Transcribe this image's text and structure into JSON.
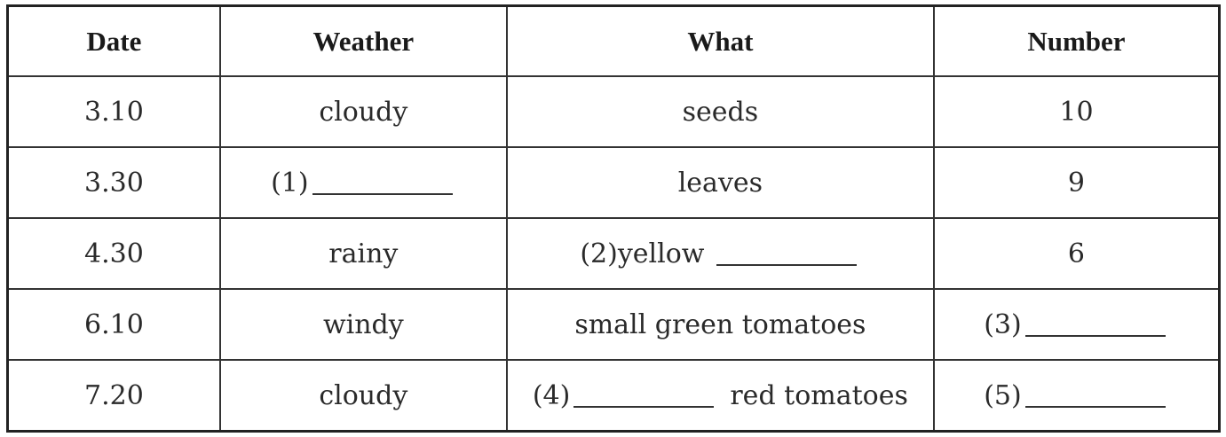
{
  "headers": [
    "Date",
    "Weather",
    "What",
    "Number"
  ],
  "rows": [
    {
      "date": "3.10",
      "weather": "cloudy",
      "what": "seeds",
      "number": "10"
    },
    {
      "date": "3.30",
      "weather_label": "(1)",
      "what": "leaves",
      "number": "9"
    },
    {
      "date": "4.30",
      "weather": "rainy",
      "what_label": "(2)",
      "what_pre": "yellow",
      "number": "6"
    },
    {
      "date": "6.10",
      "weather": "windy",
      "what": "small green tomatoes",
      "number_label": "(3)"
    },
    {
      "date": "7.20",
      "weather": "cloudy",
      "what_label": "(4)",
      "what_post": "red tomatoes",
      "number_label": "(5)"
    }
  ]
}
